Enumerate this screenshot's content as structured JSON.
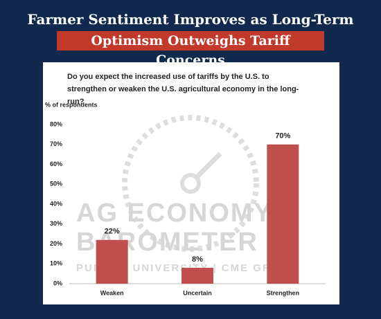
{
  "header": {
    "title": "Farmer Sentiment Improves as Long-Term",
    "subtitle": "Optimism Outweighs Tariff Concerns"
  },
  "chart_data": {
    "type": "bar",
    "title": "Do you expect the increased use of tariffs by the U.S. to strengthen or weaken the U.S. agricultural economy in the long-run?",
    "y_label": "% of respondents",
    "categories": [
      "Weaken",
      "Uncertain",
      "Strengthen"
    ],
    "values": [
      22,
      8,
      70
    ],
    "value_labels": [
      "22%",
      "8%",
      "70%"
    ],
    "color": "#c0504d",
    "ylim": [
      0,
      80
    ],
    "yticks": [
      {
        "value": 0,
        "label": "0%"
      },
      {
        "value": 10,
        "label": "10%"
      },
      {
        "value": 20,
        "label": "20%"
      },
      {
        "value": 30,
        "label": "30%"
      },
      {
        "value": 40,
        "label": "40%"
      },
      {
        "value": 50,
        "label": "50%"
      },
      {
        "value": 60,
        "label": "60%"
      },
      {
        "value": 70,
        "label": "70%"
      },
      {
        "value": 80,
        "label": "80%"
      }
    ],
    "grid": false,
    "watermark": [
      "AG ECONOMY",
      "BAROMETER",
      "PURDUE UNIVERSITY | CME GROUP"
    ]
  }
}
